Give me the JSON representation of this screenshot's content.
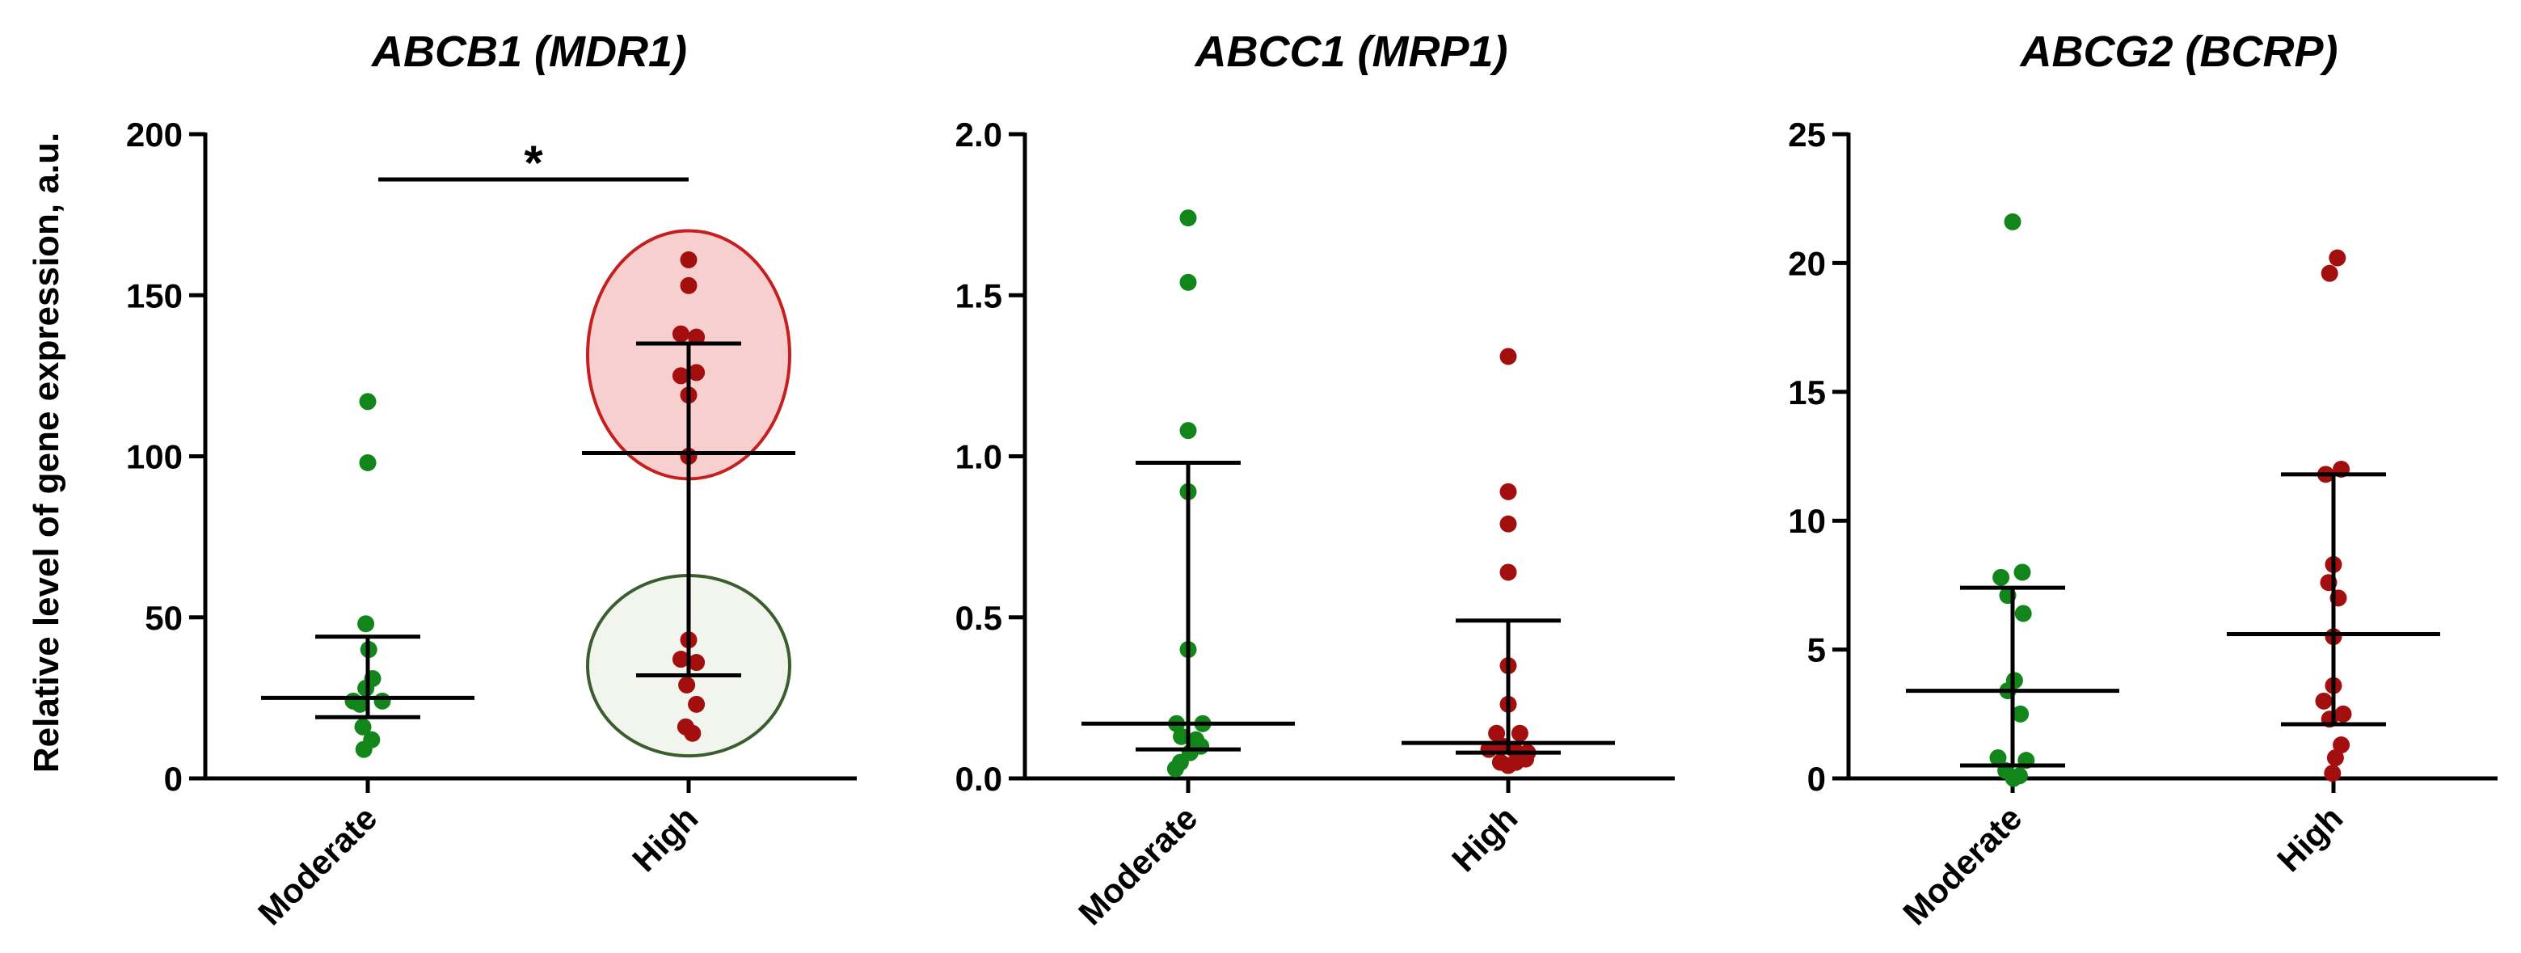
{
  "figure": {
    "ylabel": "Relative level of gene expression, a.u."
  },
  "colors": {
    "moderate": "#12861a",
    "high": "#a30f0f",
    "high_ellipse_fill": "#f7cfcf",
    "high_ellipse_stroke": "#c51f1f",
    "low_ellipse_fill": "#f1f5ee",
    "low_ellipse_stroke": "#3a5f2c",
    "axis": "#000000"
  },
  "chart_data": [
    {
      "type": "scatter",
      "title": "ABCB1 (MDR1)",
      "xlabel": "",
      "ylabel": "Relative level of gene expression, a.u.",
      "categories": [
        "Moderate",
        "High"
      ],
      "ylim": [
        0,
        200
      ],
      "yticks": [
        0,
        50,
        100,
        150,
        200
      ],
      "series": [
        {
          "name": "Moderate",
          "points": [
            [
              0,
              117
            ],
            [
              0,
              98
            ],
            [
              -0.02,
              48
            ],
            [
              0.01,
              40
            ],
            [
              -0.02,
              28
            ],
            [
              0.05,
              31
            ],
            [
              -0.15,
              24
            ],
            [
              -0.08,
              23
            ],
            [
              0.15,
              24
            ],
            [
              -0.05,
              16
            ],
            [
              0.04,
              12
            ],
            [
              -0.04,
              9
            ]
          ],
          "median": 25,
          "q1": 19,
          "q3": 44
        },
        {
          "name": "High",
          "points": [
            [
              0,
              161
            ],
            [
              0,
              153
            ],
            [
              -0.08,
              138
            ],
            [
              0.08,
              137
            ],
            [
              -0.08,
              125
            ],
            [
              0.08,
              126
            ],
            [
              0,
              119
            ],
            [
              0,
              100
            ],
            [
              0,
              43
            ],
            [
              -0.08,
              37
            ],
            [
              0.08,
              36
            ],
            [
              -0.02,
              29
            ],
            [
              0.08,
              23
            ],
            [
              -0.03,
              16
            ],
            [
              0.04,
              14
            ]
          ],
          "median": 101,
          "q1": 32,
          "q3": 135
        }
      ],
      "annotations": {
        "significance": "*",
        "ellipses": [
          {
            "group": "High",
            "center": 132,
            "y_extent": [
              93,
              170
            ],
            "kind": "high"
          },
          {
            "group": "High",
            "center": 34,
            "y_extent": [
              7,
              63
            ],
            "kind": "low"
          }
        ]
      }
    },
    {
      "type": "scatter",
      "title": "ABCC1 (MRP1)",
      "xlabel": "",
      "ylabel": "",
      "categories": [
        "Moderate",
        "High"
      ],
      "ylim": [
        0,
        2.0
      ],
      "yticks": [
        "0.0",
        "0.5",
        "1.0",
        "1.5",
        "2.0"
      ],
      "series": [
        {
          "name": "Moderate",
          "points": [
            [
              0,
              1.74
            ],
            [
              0,
              1.54
            ],
            [
              0,
              1.08
            ],
            [
              0,
              0.89
            ],
            [
              0,
              0.4
            ],
            [
              -0.12,
              0.17
            ],
            [
              0.15,
              0.17
            ],
            [
              -0.07,
              0.13
            ],
            [
              0.08,
              0.12
            ],
            [
              0.13,
              0.1
            ],
            [
              0.02,
              0.08
            ],
            [
              -0.08,
              0.05
            ],
            [
              -0.13,
              0.03
            ]
          ],
          "median": 0.17,
          "q1": 0.09,
          "q3": 0.98
        },
        {
          "name": "High",
          "points": [
            [
              0,
              1.31
            ],
            [
              0,
              0.89
            ],
            [
              0,
              0.79
            ],
            [
              0,
              0.64
            ],
            [
              0,
              0.35
            ],
            [
              0,
              0.23
            ],
            [
              -0.12,
              0.14
            ],
            [
              0.12,
              0.14
            ],
            [
              -0.2,
              0.09
            ],
            [
              0.2,
              0.08
            ],
            [
              -0.06,
              0.1
            ],
            [
              0.06,
              0.09
            ],
            [
              -0.08,
              0.05
            ],
            [
              0.08,
              0.05
            ],
            [
              0,
              0.04
            ],
            [
              0.18,
              0.06
            ]
          ],
          "median": 0.11,
          "q1": 0.08,
          "q3": 0.49
        }
      ]
    },
    {
      "type": "scatter",
      "title": "ABCG2 (BCRP)",
      "xlabel": "",
      "ylabel": "",
      "categories": [
        "Moderate",
        "High"
      ],
      "ylim": [
        0,
        25
      ],
      "yticks": [
        0,
        5,
        10,
        15,
        20,
        25
      ],
      "series": [
        {
          "name": "Moderate",
          "points": [
            [
              0,
              21.6
            ],
            [
              -0.12,
              7.8
            ],
            [
              0.1,
              8.0
            ],
            [
              -0.05,
              7.1
            ],
            [
              0.11,
              6.4
            ],
            [
              0.02,
              3.8
            ],
            [
              -0.05,
              3.4
            ],
            [
              0.08,
              2.5
            ],
            [
              -0.15,
              0.8
            ],
            [
              0.14,
              0.7
            ],
            [
              -0.07,
              0.3
            ],
            [
              0.07,
              0.1
            ],
            [
              0.01,
              0.0
            ]
          ],
          "median": 3.4,
          "q1": 0.5,
          "q3": 7.4
        },
        {
          "name": "High",
          "points": [
            [
              0.04,
              20.2
            ],
            [
              -0.04,
              19.6
            ],
            [
              -0.08,
              11.8
            ],
            [
              0.08,
              12.0
            ],
            [
              0,
              8.3
            ],
            [
              -0.05,
              7.6
            ],
            [
              0.05,
              7.0
            ],
            [
              0,
              5.5
            ],
            [
              0,
              3.6
            ],
            [
              -0.1,
              3.0
            ],
            [
              0.1,
              2.5
            ],
            [
              -0.04,
              2.3
            ],
            [
              0.08,
              1.3
            ],
            [
              0.02,
              0.8
            ],
            [
              -0.01,
              0.2
            ]
          ],
          "median": 5.6,
          "q1": 2.1,
          "q3": 11.8
        }
      ]
    }
  ]
}
